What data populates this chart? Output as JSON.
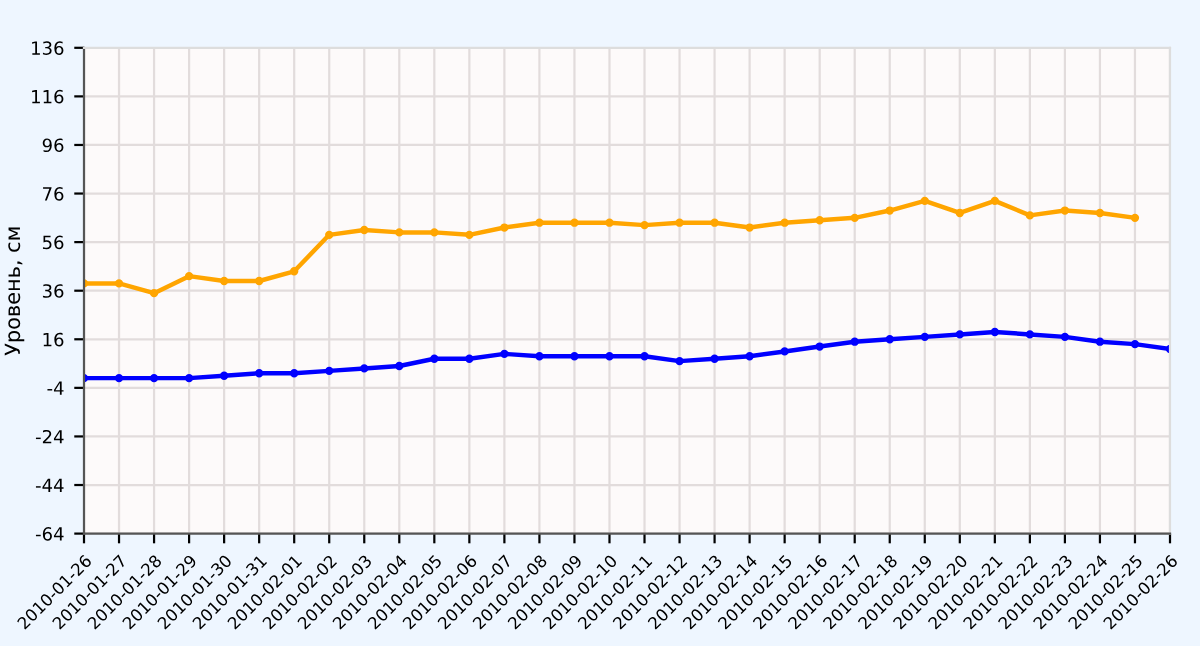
{
  "chart_data": {
    "type": "line",
    "ylabel": "Уровень, см",
    "categories": [
      "2010-01-26",
      "2010-01-27",
      "2010-01-28",
      "2010-01-29",
      "2010-01-30",
      "2010-01-31",
      "2010-02-01",
      "2010-02-02",
      "2010-02-03",
      "2010-02-04",
      "2010-02-05",
      "2010-02-06",
      "2010-02-07",
      "2010-02-08",
      "2010-02-09",
      "2010-02-10",
      "2010-02-11",
      "2010-02-12",
      "2010-02-13",
      "2010-02-14",
      "2010-02-15",
      "2010-02-16",
      "2010-02-17",
      "2010-02-18",
      "2010-02-19",
      "2010-02-20",
      "2010-02-21",
      "2010-02-22",
      "2010-02-23",
      "2010-02-24",
      "2010-02-25",
      "2010-02-26"
    ],
    "series": [
      {
        "color": "#ffa500",
        "values": [
          39,
          39,
          35,
          42,
          40,
          40,
          44,
          59,
          61,
          60,
          60,
          59,
          62,
          64,
          64,
          64,
          63,
          64,
          64,
          62,
          64,
          65,
          66,
          69,
          73,
          68,
          73,
          67,
          69,
          68,
          66,
          null
        ]
      },
      {
        "color": "#0000ff",
        "values": [
          0,
          0,
          0,
          0,
          1,
          2,
          2,
          3,
          4,
          5,
          8,
          8,
          10,
          9,
          9,
          9,
          9,
          7,
          8,
          9,
          11,
          13,
          15,
          16,
          17,
          18,
          19,
          18,
          17,
          15,
          14,
          12
        ]
      }
    ],
    "ylim": [
      -64,
      136
    ],
    "yticks": [
      -64,
      -44,
      -24,
      -4,
      16,
      36,
      56,
      76,
      96,
      116,
      136
    ],
    "grid": true,
    "marker": "circle",
    "line_style": "solid"
  }
}
